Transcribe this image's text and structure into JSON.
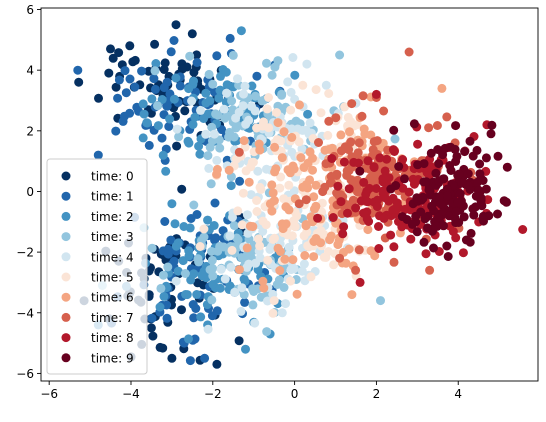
{
  "chart_data": {
    "type": "scatter",
    "title": "",
    "xlabel": "",
    "ylabel": "",
    "xlim": [
      -6.2,
      5.95
    ],
    "ylim": [
      -6.25,
      6.05
    ],
    "grid": false,
    "legend_position": "lower-left",
    "xticks": [
      -6,
      -4,
      -2,
      0,
      2,
      4
    ],
    "yticks": [
      -6,
      -4,
      -2,
      0,
      2,
      4,
      6
    ],
    "xtick_labels": [
      "−6",
      "−4",
      "−2",
      "0",
      "2",
      "4"
    ],
    "ytick_labels": [
      "−6",
      "−4",
      "−2",
      "0",
      "2",
      "4",
      "6"
    ],
    "series": [
      {
        "name": "time: 0",
        "color": "#053061",
        "clusters": [
          {
            "cx": -3.2,
            "cy": 3.3,
            "sx": 0.8,
            "sy": 0.8,
            "n": 60
          },
          {
            "cx": -3.1,
            "cy": -2.9,
            "sx": 0.8,
            "sy": 1.0,
            "n": 60
          }
        ],
        "points": [
          [
            -2.9,
            5.5
          ],
          [
            -4.5,
            4.7
          ],
          [
            -2.5,
            5.2
          ],
          [
            -3.0,
            -5.5
          ],
          [
            -1.9,
            -5.7
          ],
          [
            -3.5,
            -4.5
          ],
          [
            -4.3,
            -2.3
          ]
        ]
      },
      {
        "name": "time: 1",
        "color": "#2166ac",
        "clusters": [
          {
            "cx": -2.6,
            "cy": 2.8,
            "sx": 0.9,
            "sy": 0.9,
            "n": 75
          },
          {
            "cx": -2.5,
            "cy": -2.7,
            "sx": 0.9,
            "sy": 1.0,
            "n": 75
          }
        ],
        "points": [
          [
            -5.3,
            4.0
          ],
          [
            -2.2,
            -5.5
          ],
          [
            -2.7,
            -5.0
          ],
          [
            -4.8,
            1.2
          ]
        ]
      },
      {
        "name": "time: 2",
        "color": "#4393c3",
        "clusters": [
          {
            "cx": -2.0,
            "cy": 2.6,
            "sx": 0.9,
            "sy": 0.9,
            "n": 75
          },
          {
            "cx": -2.0,
            "cy": -2.5,
            "sx": 0.9,
            "sy": 1.0,
            "n": 75
          }
        ],
        "points": [
          [
            -1.3,
            5.3
          ],
          [
            -1.2,
            -5.2
          ],
          [
            -0.6,
            -4.7
          ],
          [
            -4.8,
            -4.4
          ]
        ]
      },
      {
        "name": "time: 3",
        "color": "#92c5de",
        "clusters": [
          {
            "cx": -1.2,
            "cy": 2.4,
            "sx": 0.9,
            "sy": 0.8,
            "n": 75
          },
          {
            "cx": -1.3,
            "cy": -2.2,
            "sx": 0.9,
            "sy": 0.9,
            "n": 75
          }
        ],
        "points": [
          [
            1.1,
            4.5
          ],
          [
            2.1,
            -3.6
          ],
          [
            -4.7,
            -3.1
          ],
          [
            1.2,
            2.8
          ]
        ]
      },
      {
        "name": "time: 4",
        "color": "#d1e5f0",
        "clusters": [
          {
            "cx": -0.5,
            "cy": 1.9,
            "sx": 0.9,
            "sy": 0.9,
            "n": 75
          },
          {
            "cx": -0.6,
            "cy": -1.8,
            "sx": 0.9,
            "sy": 0.9,
            "n": 75
          }
        ],
        "points": [
          [
            0.3,
            4.2
          ],
          [
            -0.3,
            -4.0
          ]
        ]
      },
      {
        "name": "time: 5",
        "color": "#fbe4d6",
        "clusters": [
          {
            "cx": 0.3,
            "cy": 1.3,
            "sx": 0.9,
            "sy": 0.9,
            "n": 75
          },
          {
            "cx": 0.2,
            "cy": -1.2,
            "sx": 0.9,
            "sy": 0.9,
            "n": 75
          }
        ],
        "points": [
          [
            0.2,
            3.5
          ],
          [
            -0.5,
            -3.6
          ]
        ]
      },
      {
        "name": "time: 6",
        "color": "#f4a582",
        "clusters": [
          {
            "cx": 0.9,
            "cy": 0.9,
            "sx": 0.9,
            "sy": 0.9,
            "n": 75
          },
          {
            "cx": 0.8,
            "cy": -1.3,
            "sx": 0.9,
            "sy": 0.9,
            "n": 75
          }
        ],
        "points": [
          [
            3.6,
            3.4
          ],
          [
            1.4,
            -3.4
          ],
          [
            -1.6,
            0.7
          ]
        ]
      },
      {
        "name": "time: 7",
        "color": "#d6604d",
        "clusters": [
          {
            "cx": 1.9,
            "cy": 0.4,
            "sx": 0.9,
            "sy": 0.9,
            "n": 150
          }
        ],
        "points": [
          [
            2.8,
            4.6
          ],
          [
            2.0,
            3.1
          ],
          [
            1.1,
            -2.2
          ],
          [
            3.3,
            -2.6
          ]
        ]
      },
      {
        "name": "time: 8",
        "color": "#b2182b",
        "clusters": [
          {
            "cx": 2.8,
            "cy": -0.1,
            "sx": 0.8,
            "sy": 0.9,
            "n": 150
          }
        ],
        "points": [
          [
            2.0,
            3.2
          ],
          [
            1.6,
            -3.0
          ],
          [
            4.7,
            2.2
          ]
        ]
      },
      {
        "name": "time: 9",
        "color": "#67001f",
        "clusters": [
          {
            "cx": 3.7,
            "cy": -0.1,
            "sx": 0.7,
            "sy": 0.8,
            "n": 150
          }
        ],
        "points": [
          [
            5.2,
            0.8
          ],
          [
            4.8,
            1.9
          ],
          [
            4.2,
            -1.6
          ]
        ]
      }
    ]
  }
}
